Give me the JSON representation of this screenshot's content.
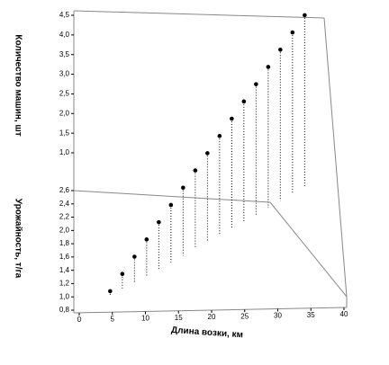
{
  "chart_data": {
    "type": "scatter3d",
    "x_label": "Длина возки, км",
    "y_label": "Урожайность, т/га",
    "z_label": "Количество машин, шт",
    "x": [
      5,
      7,
      9,
      11,
      13,
      15,
      17,
      19,
      21,
      23,
      25,
      27,
      29,
      31,
      33,
      35,
      37
    ],
    "y": [
      1.0,
      1.1,
      1.2,
      1.3,
      1.4,
      1.5,
      1.6,
      1.7,
      1.8,
      1.9,
      2.0,
      2.1,
      2.2,
      2.3,
      2.4,
      2.5,
      2.6
    ],
    "z": [
      1.1,
      1.3,
      1.5,
      1.7,
      1.9,
      2.1,
      2.3,
      2.5,
      2.7,
      2.9,
      3.1,
      3.3,
      3.5,
      3.7,
      3.9,
      4.1,
      4.3
    ],
    "color": "#000000",
    "xlim": [
      0,
      40
    ],
    "xticks": [
      0,
      5,
      10,
      15,
      20,
      25,
      30,
      35,
      40
    ],
    "ylim": [
      0.8,
      2.6
    ],
    "yticks": [
      {
        "value": 0.8,
        "label": "0,8"
      },
      {
        "value": 1.0,
        "label": "1,0"
      },
      {
        "value": 1.2,
        "label": "1,2"
      },
      {
        "value": 1.4,
        "label": "1,4"
      },
      {
        "value": 1.6,
        "label": "1,6"
      },
      {
        "value": 1.8,
        "label": "1,8"
      },
      {
        "value": 2.0,
        "label": "2,0"
      },
      {
        "value": 2.2,
        "label": "2,2"
      },
      {
        "value": 2.4,
        "label": "2,4"
      },
      {
        "value": 2.6,
        "label": "2,6"
      }
    ],
    "zlim": [
      1.0,
      4.5
    ],
    "zticks": [
      {
        "value": 1.0,
        "label": "1,0"
      },
      {
        "value": 1.5,
        "label": "1,5"
      },
      {
        "value": 2.0,
        "label": "2,0"
      },
      {
        "value": 2.5,
        "label": "2,5"
      },
      {
        "value": 3.0,
        "label": "3,0"
      },
      {
        "value": 3.5,
        "label": "3,5"
      },
      {
        "value": 4.0,
        "label": "4,0"
      },
      {
        "value": 4.5,
        "label": "4,5"
      }
    ]
  }
}
